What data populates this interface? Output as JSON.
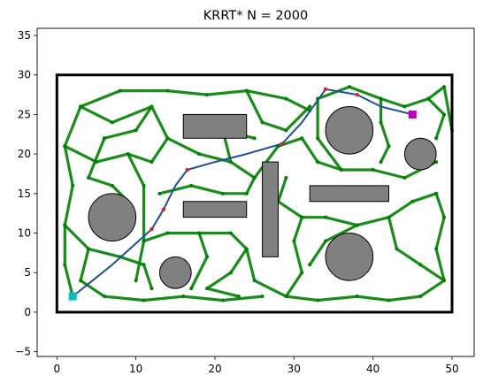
{
  "chart_data": {
    "type": "scatter",
    "title": "KRRT* N = 2000",
    "xlabel": "",
    "ylabel": "",
    "xlim": [
      -2.5,
      52.8
    ],
    "ylim": [
      -5.6,
      35.9
    ],
    "xticks": [
      0,
      10,
      20,
      30,
      40,
      50
    ],
    "yticks": [
      -5,
      0,
      5,
      10,
      15,
      20,
      25,
      30,
      35
    ],
    "grid": false,
    "boundary": {
      "x": [
        0,
        50
      ],
      "y": [
        0,
        30
      ],
      "color": "#000000"
    },
    "start": {
      "x": 2,
      "y": 2,
      "color": "#00bfbf"
    },
    "goal": {
      "x": 45,
      "y": 25,
      "color": "#bf00bf"
    },
    "obstacles": {
      "circles": [
        {
          "cx": 7,
          "cy": 12,
          "r": 3,
          "color": "#808080"
        },
        {
          "cx": 37,
          "cy": 23,
          "r": 3,
          "color": "#808080"
        },
        {
          "cx": 37,
          "cy": 7,
          "r": 3,
          "color": "#808080"
        },
        {
          "cx": 46,
          "cy": 20,
          "r": 2,
          "color": "#808080"
        },
        {
          "cx": 15,
          "cy": 5,
          "r": 2,
          "color": "#808080"
        }
      ],
      "rects": [
        {
          "x0": 16,
          "y0": 22,
          "x1": 24,
          "y1": 25,
          "color": "#808080"
        },
        {
          "x0": 16,
          "y0": 12,
          "x1": 24,
          "y1": 14,
          "color": "#808080"
        },
        {
          "x0": 26,
          "y0": 7,
          "x1": 28,
          "y1": 19,
          "color": "#808080"
        },
        {
          "x0": 32,
          "y0": 14,
          "x1": 42,
          "y1": 16,
          "color": "#808080"
        }
      ]
    },
    "series": [
      {
        "role": "tree",
        "color": "#008000",
        "segments": [
          [
            [
              2,
              2
            ],
            [
              1,
              6
            ],
            [
              1,
              11
            ],
            [
              2,
              16
            ],
            [
              1,
              21
            ],
            [
              3,
              26
            ],
            [
              8,
              28
            ]
          ],
          [
            [
              1,
              11
            ],
            [
              4,
              8
            ],
            [
              3,
              4
            ],
            [
              6,
              2
            ],
            [
              11,
              1.5
            ],
            [
              16,
              2
            ],
            [
              21,
              1.5
            ],
            [
              26,
              2
            ]
          ],
          [
            [
              1,
              21
            ],
            [
              5,
              19
            ],
            [
              9,
              20
            ],
            [
              11,
              16
            ],
            [
              11,
              9
            ],
            [
              10,
              4
            ]
          ],
          [
            [
              3,
              26
            ],
            [
              7,
              24
            ],
            [
              12,
              26
            ],
            [
              14,
              22
            ],
            [
              12,
              19
            ],
            [
              9,
              20
            ]
          ],
          [
            [
              8,
              28
            ],
            [
              14,
              28
            ],
            [
              19,
              27.5
            ],
            [
              24,
              28
            ],
            [
              29,
              27
            ],
            [
              32,
              25.5
            ]
          ],
          [
            [
              14,
              22
            ],
            [
              18,
              20
            ],
            [
              22,
              19
            ],
            [
              25,
              17
            ],
            [
              24,
              15
            ],
            [
              21,
              15
            ],
            [
              17,
              16
            ],
            [
              13,
              15
            ]
          ],
          [
            [
              25,
              17
            ],
            [
              28,
              21
            ],
            [
              31,
              22
            ],
            [
              33,
              19
            ],
            [
              36,
              18
            ],
            [
              40,
              18
            ],
            [
              44,
              17
            ],
            [
              48,
              19
            ]
          ],
          [
            [
              24,
              28
            ],
            [
              26,
              24
            ],
            [
              29,
              23
            ],
            [
              32,
              26
            ]
          ],
          [
            [
              12,
              26
            ],
            [
              10,
              23
            ],
            [
              6,
              22
            ]
          ],
          [
            [
              11,
              9
            ],
            [
              14,
              10
            ],
            [
              18,
              10
            ],
            [
              22,
              10
            ],
            [
              24,
              8
            ],
            [
              22,
              5
            ],
            [
              19,
              3
            ],
            [
              23,
              2
            ]
          ],
          [
            [
              24,
              8
            ],
            [
              25,
              4
            ],
            [
              29,
              2
            ],
            [
              31,
              5
            ],
            [
              30,
              9
            ],
            [
              31,
              12
            ],
            [
              34,
              12
            ],
            [
              38,
              11
            ],
            [
              42,
              12
            ],
            [
              45,
              14
            ],
            [
              48,
              15
            ]
          ],
          [
            [
              29,
              2
            ],
            [
              33,
              1.5
            ],
            [
              38,
              2
            ],
            [
              42,
              1.5
            ],
            [
              46,
              2
            ],
            [
              49,
              4
            ],
            [
              48,
              8
            ],
            [
              49,
              12
            ],
            [
              48,
              15
            ]
          ],
          [
            [
              42,
              12
            ],
            [
              43,
              8
            ],
            [
              46,
              6
            ],
            [
              49,
              4
            ]
          ],
          [
            [
              38,
              11
            ],
            [
              34,
              9
            ],
            [
              32,
              6
            ]
          ],
          [
            [
              31,
              12
            ],
            [
              28,
              14
            ],
            [
              29,
              17
            ]
          ],
          [
            [
              36,
              18
            ],
            [
              33,
              22
            ],
            [
              33,
              27
            ],
            [
              37,
              28.5
            ],
            [
              41,
              27
            ],
            [
              44,
              26
            ],
            [
              47,
              27
            ],
            [
              49,
              25
            ],
            [
              48,
              22
            ]
          ],
          [
            [
              41,
              27
            ],
            [
              41,
              24
            ],
            [
              42,
              21
            ],
            [
              41,
              19
            ]
          ],
          [
            [
              18,
              10
            ],
            [
              19,
              7
            ],
            [
              17,
              3
            ]
          ],
          [
            [
              6,
              22
            ],
            [
              4,
              17
            ],
            [
              7,
              16
            ],
            [
              9,
              14
            ]
          ],
          [
            [
              4,
              8
            ],
            [
              8,
              7
            ],
            [
              11,
              6
            ],
            [
              12,
              3
            ]
          ],
          [
            [
              22,
              19
            ],
            [
              21,
              23
            ],
            [
              25,
              22
            ]
          ],
          [
            [
              47,
              27
            ],
            [
              49,
              28.5
            ],
            [
              50,
              23
            ]
          ]
        ]
      },
      {
        "role": "path",
        "color": "#1f4e99",
        "points": [
          [
            2,
            2
          ],
          [
            7,
            6
          ],
          [
            12,
            10.5
          ],
          [
            13.5,
            13
          ],
          [
            15,
            16
          ],
          [
            16.5,
            18
          ],
          [
            20,
            19
          ],
          [
            24,
            20
          ],
          [
            28.5,
            21.3
          ],
          [
            31,
            24
          ],
          [
            34,
            28.2
          ],
          [
            38,
            27.5
          ],
          [
            41,
            26
          ],
          [
            45,
            25
          ]
        ]
      },
      {
        "role": "path-nodes",
        "color": "#d62728",
        "points": [
          [
            12,
            10.5
          ],
          [
            13.5,
            13
          ],
          [
            16.5,
            18
          ],
          [
            28.5,
            21.3
          ],
          [
            34,
            28.2
          ],
          [
            38,
            27.5
          ]
        ]
      }
    ]
  }
}
